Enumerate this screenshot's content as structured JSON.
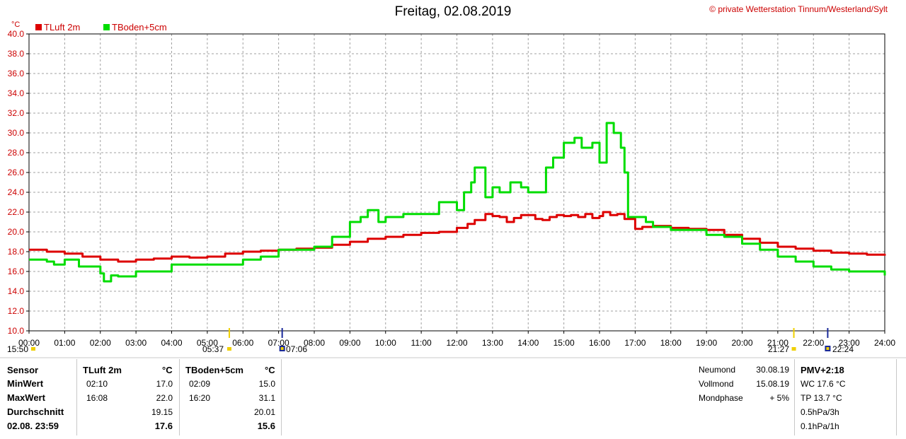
{
  "title": "Freitag, 02.08.2019",
  "copyright": "© private Wetterstation Tinnum/Westerland/Sylt",
  "colors": {
    "tluft": "#dd0000",
    "tboden": "#00dd00",
    "grid": "#a0a0a0"
  },
  "chart_data": {
    "type": "line",
    "yunit": "°C",
    "ylim": [
      10,
      40
    ],
    "yticks": [
      "10.0",
      "12.0",
      "14.0",
      "16.0",
      "18.0",
      "20.0",
      "22.0",
      "24.0",
      "26.0",
      "28.0",
      "30.0",
      "32.0",
      "34.0",
      "36.0",
      "38.0",
      "40.0"
    ],
    "xlim": [
      0,
      24
    ],
    "xticks": [
      "00:00",
      "01:00",
      "02:00",
      "03:00",
      "04:00",
      "05:00",
      "06:00",
      "07:00",
      "08:00",
      "09:00",
      "10:00",
      "11:00",
      "12:00",
      "13:00",
      "14:00",
      "15:00",
      "16:00",
      "17:00",
      "18:00",
      "19:00",
      "20:00",
      "21:00",
      "22:00",
      "23:00",
      "24:00"
    ],
    "grid": true,
    "legend": "top-left",
    "series": [
      {
        "name": "TLuft 2m",
        "color": "#dd0000",
        "x": [
          0,
          0.5,
          1,
          1.5,
          2,
          2.5,
          3,
          3.5,
          4,
          4.5,
          5,
          5.5,
          6,
          6.5,
          7,
          7.5,
          8,
          8.5,
          9,
          9.5,
          10,
          10.5,
          11,
          11.5,
          12,
          12.3,
          12.5,
          12.8,
          13,
          13.2,
          13.4,
          13.6,
          13.8,
          14,
          14.2,
          14.4,
          14.6,
          14.8,
          15,
          15.2,
          15.4,
          15.6,
          15.8,
          16,
          16.1,
          16.3,
          16.5,
          16.7,
          17,
          17.2,
          17.5,
          18,
          18.5,
          19,
          19.5,
          20,
          20.5,
          21,
          21.5,
          22,
          22.5,
          23,
          23.5,
          24
        ],
        "y": [
          18.2,
          18.0,
          17.8,
          17.5,
          17.2,
          17.0,
          17.2,
          17.3,
          17.5,
          17.4,
          17.5,
          17.8,
          18.0,
          18.1,
          18.2,
          18.3,
          18.4,
          18.7,
          19.0,
          19.3,
          19.5,
          19.7,
          19.9,
          20.0,
          20.4,
          20.8,
          21.2,
          21.8,
          21.6,
          21.5,
          21.0,
          21.4,
          21.7,
          21.7,
          21.3,
          21.2,
          21.5,
          21.7,
          21.6,
          21.7,
          21.5,
          21.8,
          21.4,
          21.6,
          22.0,
          21.7,
          21.8,
          21.3,
          20.3,
          20.5,
          20.6,
          20.4,
          20.3,
          20.2,
          19.7,
          19.3,
          18.9,
          18.5,
          18.3,
          18.1,
          17.9,
          17.8,
          17.7,
          17.6
        ]
      },
      {
        "name": "TBoden+5cm",
        "color": "#00dd00",
        "x": [
          0,
          0.5,
          0.7,
          1,
          1.4,
          2,
          2.1,
          2.3,
          2.5,
          3,
          3.5,
          4,
          5,
          6,
          6.5,
          7,
          8,
          8.5,
          9,
          9.3,
          9.5,
          9.8,
          10,
          10.5,
          11,
          11.5,
          12,
          12.2,
          12.4,
          12.5,
          12.8,
          13,
          13.2,
          13.5,
          13.8,
          14,
          14.5,
          14.7,
          15,
          15.3,
          15.5,
          15.8,
          16,
          16.2,
          16.4,
          16.6,
          16.7,
          16.8,
          17,
          17.3,
          17.5,
          18,
          18.5,
          19,
          19.5,
          20,
          20.5,
          21,
          21.5,
          22,
          22.5,
          23,
          23.5,
          24
        ],
        "y": [
          17.2,
          17.0,
          16.7,
          17.2,
          16.5,
          15.8,
          15.0,
          15.6,
          15.5,
          16.0,
          16.0,
          16.7,
          16.7,
          17.2,
          17.5,
          18.2,
          18.5,
          19.5,
          21.0,
          21.5,
          22.2,
          21.0,
          21.5,
          21.8,
          21.8,
          23.0,
          22.2,
          24.0,
          25.0,
          26.5,
          23.5,
          24.5,
          24.0,
          25.0,
          24.5,
          24.0,
          26.5,
          27.5,
          29.0,
          29.5,
          28.5,
          29.0,
          27.0,
          31.0,
          30.0,
          28.5,
          26.0,
          21.5,
          21.5,
          21.0,
          20.5,
          20.2,
          20.2,
          19.7,
          19.5,
          18.8,
          18.2,
          17.5,
          17.0,
          16.5,
          16.2,
          16.0,
          16.0,
          15.6
        ]
      }
    ]
  },
  "sun": {
    "rise_time": "05:37",
    "set_time": "21:27",
    "rise_hour": 5.617,
    "set_hour": 21.45
  },
  "moon": {
    "set_time": "07:06",
    "rise_time": "22:24",
    "set_hour": 7.1,
    "rise_hour": 22.4,
    "prev_time": "15:50"
  },
  "stats": {
    "sensor_header": "Sensor",
    "rows": [
      "MinWert",
      "MaxWert",
      "Durchschnitt",
      "02.08. 23:59"
    ],
    "tluft": {
      "name": "TLuft 2m",
      "unit": "°C",
      "min_time": "02:10",
      "min": "17.0",
      "max_time": "16:08",
      "max": "22.0",
      "avg": "19.15",
      "current": "17.6"
    },
    "tboden": {
      "name": "TBoden+5cm",
      "unit": "°C",
      "min_time": "02:09",
      "min": "15.0",
      "max_time": "16:20",
      "max": "31.1",
      "avg": "20.01",
      "current": "15.6"
    }
  },
  "moon_info": {
    "neumond_label": "Neumond",
    "neumond_date": "30.08.19",
    "vollmond_label": "Vollmond",
    "vollmond_date": "15.08.19",
    "phase_label": "Mondphase",
    "phase_value": "+ 5%"
  },
  "pmv": {
    "title": "PMV+2:18",
    "wc": "WC 17.6 °C",
    "tp": "TP 13.7 °C",
    "p3h": "0.5hPa/3h",
    "p1h": "0.1hPa/1h"
  }
}
